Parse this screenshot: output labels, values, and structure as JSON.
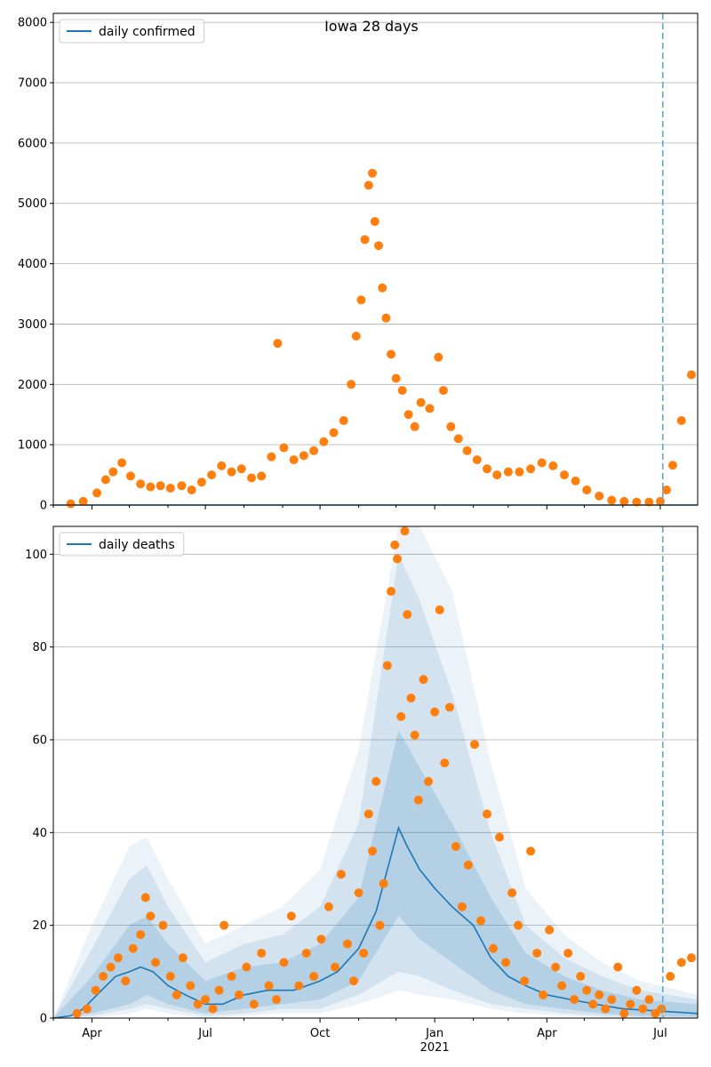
{
  "colors": {
    "model_line": "#1f77b4",
    "observed": "#ff7f0e",
    "grid": "#b0b0b0",
    "band": "#1f77b4",
    "forecast_marker": "#5ea5d8"
  },
  "chart_data": [
    {
      "type": "scatter",
      "title": "Iowa 28 days",
      "legend": [
        "daily confirmed"
      ],
      "legend_position": "top-left",
      "grid": "horizontal",
      "xlim": [
        "2020-03-01",
        "2021-07-31"
      ],
      "ylim": [
        0,
        8150
      ],
      "yticks": [
        0,
        1000,
        2000,
        3000,
        4000,
        5000,
        6000,
        7000,
        8000
      ],
      "forecast_start": "2021-07-03",
      "observed": [
        [
          "2020-03-15",
          20
        ],
        [
          "2020-03-25",
          60
        ],
        [
          "2020-04-05",
          200
        ],
        [
          "2020-04-12",
          420
        ],
        [
          "2020-04-18",
          550
        ],
        [
          "2020-04-25",
          700
        ],
        [
          "2020-05-02",
          480
        ],
        [
          "2020-05-10",
          350
        ],
        [
          "2020-05-18",
          300
        ],
        [
          "2020-05-26",
          320
        ],
        [
          "2020-06-03",
          280
        ],
        [
          "2020-06-12",
          320
        ],
        [
          "2020-06-20",
          250
        ],
        [
          "2020-06-28",
          380
        ],
        [
          "2020-07-06",
          500
        ],
        [
          "2020-07-14",
          650
        ],
        [
          "2020-07-22",
          550
        ],
        [
          "2020-07-30",
          600
        ],
        [
          "2020-08-07",
          450
        ],
        [
          "2020-08-15",
          480
        ],
        [
          "2020-08-23",
          800
        ],
        [
          "2020-08-28",
          2680
        ],
        [
          "2020-09-02",
          950
        ],
        [
          "2020-09-10",
          750
        ],
        [
          "2020-09-18",
          820
        ],
        [
          "2020-09-26",
          900
        ],
        [
          "2020-10-04",
          1050
        ],
        [
          "2020-10-12",
          1200
        ],
        [
          "2020-10-20",
          1400
        ],
        [
          "2020-10-26",
          2000
        ],
        [
          "2020-10-30",
          2800
        ],
        [
          "2020-11-03",
          3400
        ],
        [
          "2020-11-06",
          4400
        ],
        [
          "2020-11-09",
          5300
        ],
        [
          "2020-11-12",
          5500
        ],
        [
          "2020-11-14",
          4700
        ],
        [
          "2020-11-17",
          4300
        ],
        [
          "2020-11-20",
          3600
        ],
        [
          "2020-11-23",
          3100
        ],
        [
          "2020-11-27",
          2500
        ],
        [
          "2020-12-01",
          2100
        ],
        [
          "2020-12-06",
          1900
        ],
        [
          "2020-12-11",
          1500
        ],
        [
          "2020-12-16",
          1300
        ],
        [
          "2020-12-21",
          1700
        ],
        [
          "2020-12-28",
          1600
        ],
        [
          "2021-01-04",
          2450
        ],
        [
          "2021-01-08",
          1900
        ],
        [
          "2021-01-14",
          1300
        ],
        [
          "2021-01-20",
          1100
        ],
        [
          "2021-01-27",
          900
        ],
        [
          "2021-02-04",
          750
        ],
        [
          "2021-02-12",
          600
        ],
        [
          "2021-02-20",
          500
        ],
        [
          "2021-03-01",
          550
        ],
        [
          "2021-03-10",
          550
        ],
        [
          "2021-03-19",
          600
        ],
        [
          "2021-03-28",
          700
        ],
        [
          "2021-04-06",
          650
        ],
        [
          "2021-04-15",
          500
        ],
        [
          "2021-04-24",
          400
        ],
        [
          "2021-05-03",
          250
        ],
        [
          "2021-05-13",
          150
        ],
        [
          "2021-05-23",
          80
        ],
        [
          "2021-06-02",
          60
        ],
        [
          "2021-06-12",
          50
        ],
        [
          "2021-06-22",
          50
        ],
        [
          "2021-07-01",
          60
        ],
        [
          "2021-07-06",
          250
        ],
        [
          "2021-07-11",
          660
        ],
        [
          "2021-07-18",
          1400
        ],
        [
          "2021-07-26",
          2160
        ]
      ],
      "model": [
        [
          "2020-03-01",
          0
        ],
        [
          "2021-07-31",
          0
        ]
      ]
    },
    {
      "type": "line",
      "legend": [
        "daily deaths"
      ],
      "legend_position": "top-left",
      "grid": "horizontal",
      "xlim": [
        "2020-03-01",
        "2021-07-31"
      ],
      "ylim": [
        0,
        106
      ],
      "yticks": [
        0,
        20,
        40,
        60,
        80,
        100
      ],
      "xticks": [
        "Apr",
        "Jul",
        "Oct",
        "Jan",
        "Apr",
        "Jul"
      ],
      "xtick_year": "2021",
      "forecast_start": "2021-07-03",
      "model": [
        [
          "2020-03-01",
          0
        ],
        [
          "2020-03-15",
          0.5
        ],
        [
          "2020-03-25",
          2
        ],
        [
          "2020-04-05",
          5
        ],
        [
          "2020-04-20",
          9
        ],
        [
          "2020-05-01",
          10
        ],
        [
          "2020-05-10",
          11
        ],
        [
          "2020-05-20",
          10
        ],
        [
          "2020-06-01",
          7
        ],
        [
          "2020-06-15",
          5
        ],
        [
          "2020-07-01",
          3
        ],
        [
          "2020-07-15",
          3
        ],
        [
          "2020-08-01",
          5
        ],
        [
          "2020-08-20",
          6
        ],
        [
          "2020-09-10",
          6
        ],
        [
          "2020-10-01",
          8
        ],
        [
          "2020-10-15",
          10
        ],
        [
          "2020-11-01",
          15
        ],
        [
          "2020-11-15",
          23
        ],
        [
          "2020-11-25",
          33
        ],
        [
          "2020-12-03",
          41
        ],
        [
          "2020-12-10",
          37
        ],
        [
          "2020-12-20",
          32
        ],
        [
          "2021-01-01",
          28
        ],
        [
          "2021-01-15",
          24
        ],
        [
          "2021-02-01",
          20
        ],
        [
          "2021-02-15",
          13
        ],
        [
          "2021-03-01",
          9
        ],
        [
          "2021-03-15",
          7
        ],
        [
          "2021-04-01",
          5
        ],
        [
          "2021-04-20",
          4
        ],
        [
          "2021-05-10",
          3
        ],
        [
          "2021-06-01",
          2
        ],
        [
          "2021-07-01",
          1.5
        ],
        [
          "2021-07-31",
          1
        ]
      ],
      "bands": [
        [
          [
            "2020-03-01",
            0,
            0
          ],
          [
            "2020-04-01",
            1,
            9
          ],
          [
            "2020-05-01",
            3,
            20
          ],
          [
            "2020-05-15",
            5,
            22
          ],
          [
            "2020-06-01",
            3,
            16
          ],
          [
            "2020-07-01",
            1,
            8
          ],
          [
            "2020-08-01",
            2,
            11
          ],
          [
            "2020-09-01",
            3,
            12
          ],
          [
            "2020-10-01",
            4,
            16
          ],
          [
            "2020-11-01",
            8,
            26
          ],
          [
            "2020-12-03",
            22,
            62
          ],
          [
            "2020-12-20",
            17,
            54
          ],
          [
            "2021-01-15",
            12,
            42
          ],
          [
            "2021-02-15",
            6,
            26
          ],
          [
            "2021-03-15",
            3,
            14
          ],
          [
            "2021-04-15",
            2,
            9
          ],
          [
            "2021-05-15",
            1,
            6
          ],
          [
            "2021-06-15",
            0.5,
            4
          ],
          [
            "2021-07-31",
            0.3,
            3
          ]
        ],
        [
          [
            "2020-03-01",
            0,
            0
          ],
          [
            "2020-04-01",
            0.5,
            15
          ],
          [
            "2020-05-01",
            2,
            30
          ],
          [
            "2020-05-15",
            3,
            33
          ],
          [
            "2020-06-01",
            2,
            24
          ],
          [
            "2020-07-01",
            0.5,
            12
          ],
          [
            "2020-08-01",
            1,
            16
          ],
          [
            "2020-09-01",
            2,
            18
          ],
          [
            "2020-10-01",
            2,
            24
          ],
          [
            "2020-11-01",
            5,
            42
          ],
          [
            "2020-12-03",
            10,
            100
          ],
          [
            "2020-12-20",
            9,
            90
          ],
          [
            "2021-01-15",
            6,
            70
          ],
          [
            "2021-02-15",
            3,
            40
          ],
          [
            "2021-03-15",
            2,
            20
          ],
          [
            "2021-04-15",
            1,
            13
          ],
          [
            "2021-05-15",
            0.5,
            9
          ],
          [
            "2021-06-15",
            0.2,
            6
          ],
          [
            "2021-07-31",
            0.1,
            4
          ]
        ],
        [
          [
            "2020-03-01",
            0,
            0
          ],
          [
            "2020-04-01",
            0,
            20
          ],
          [
            "2020-05-01",
            1,
            37
          ],
          [
            "2020-05-15",
            2,
            39
          ],
          [
            "2020-06-01",
            1,
            30
          ],
          [
            "2020-07-01",
            0,
            16
          ],
          [
            "2020-08-01",
            0.5,
            20
          ],
          [
            "2020-09-01",
            1,
            24
          ],
          [
            "2020-10-01",
            1,
            32
          ],
          [
            "2020-11-01",
            3,
            58
          ],
          [
            "2020-12-03",
            6,
            106
          ],
          [
            "2020-12-20",
            5,
            106
          ],
          [
            "2021-01-15",
            4,
            92
          ],
          [
            "2021-02-15",
            2,
            55
          ],
          [
            "2021-03-15",
            1,
            28
          ],
          [
            "2021-04-15",
            0.5,
            18
          ],
          [
            "2021-05-15",
            0.2,
            12
          ],
          [
            "2021-06-15",
            0.1,
            8
          ],
          [
            "2021-07-31",
            0,
            5
          ]
        ]
      ],
      "observed": [
        [
          "2020-03-20",
          1
        ],
        [
          "2020-03-28",
          2
        ],
        [
          "2020-04-04",
          6
        ],
        [
          "2020-04-10",
          9
        ],
        [
          "2020-04-16",
          11
        ],
        [
          "2020-04-22",
          13
        ],
        [
          "2020-04-28",
          8
        ],
        [
          "2020-05-04",
          15
        ],
        [
          "2020-05-10",
          18
        ],
        [
          "2020-05-14",
          26
        ],
        [
          "2020-05-18",
          22
        ],
        [
          "2020-05-22",
          12
        ],
        [
          "2020-05-28",
          20
        ],
        [
          "2020-06-03",
          9
        ],
        [
          "2020-06-08",
          5
        ],
        [
          "2020-06-13",
          13
        ],
        [
          "2020-06-19",
          7
        ],
        [
          "2020-06-25",
          3
        ],
        [
          "2020-07-01",
          4
        ],
        [
          "2020-07-07",
          2
        ],
        [
          "2020-07-12",
          6
        ],
        [
          "2020-07-16",
          20
        ],
        [
          "2020-07-22",
          9
        ],
        [
          "2020-07-28",
          5
        ],
        [
          "2020-08-03",
          11
        ],
        [
          "2020-08-09",
          3
        ],
        [
          "2020-08-15",
          14
        ],
        [
          "2020-08-21",
          7
        ],
        [
          "2020-08-27",
          4
        ],
        [
          "2020-09-02",
          12
        ],
        [
          "2020-09-08",
          22
        ],
        [
          "2020-09-14",
          7
        ],
        [
          "2020-09-20",
          14
        ],
        [
          "2020-09-26",
          9
        ],
        [
          "2020-10-02",
          17
        ],
        [
          "2020-10-08",
          24
        ],
        [
          "2020-10-13",
          11
        ],
        [
          "2020-10-18",
          31
        ],
        [
          "2020-10-23",
          16
        ],
        [
          "2020-10-28",
          8
        ],
        [
          "2020-11-01",
          27
        ],
        [
          "2020-11-05",
          14
        ],
        [
          "2020-11-09",
          44
        ],
        [
          "2020-11-12",
          36
        ],
        [
          "2020-11-15",
          51
        ],
        [
          "2020-11-18",
          20
        ],
        [
          "2020-11-21",
          29
        ],
        [
          "2020-11-24",
          76
        ],
        [
          "2020-11-27",
          92
        ],
        [
          "2020-11-30",
          102
        ],
        [
          "2020-12-02",
          99
        ],
        [
          "2020-12-05",
          65
        ],
        [
          "2020-12-08",
          105
        ],
        [
          "2020-12-10",
          87
        ],
        [
          "2020-12-13",
          69
        ],
        [
          "2020-12-16",
          61
        ],
        [
          "2020-12-19",
          47
        ],
        [
          "2020-12-23",
          73
        ],
        [
          "2020-12-27",
          51
        ],
        [
          "2021-01-01",
          66
        ],
        [
          "2021-01-05",
          88
        ],
        [
          "2021-01-09",
          55
        ],
        [
          "2021-01-13",
          67
        ],
        [
          "2021-01-18",
          37
        ],
        [
          "2021-01-23",
          24
        ],
        [
          "2021-01-28",
          33
        ],
        [
          "2021-02-02",
          59
        ],
        [
          "2021-02-07",
          21
        ],
        [
          "2021-02-12",
          44
        ],
        [
          "2021-02-17",
          15
        ],
        [
          "2021-02-22",
          39
        ],
        [
          "2021-02-27",
          12
        ],
        [
          "2021-03-04",
          27
        ],
        [
          "2021-03-09",
          20
        ],
        [
          "2021-03-14",
          8
        ],
        [
          "2021-03-19",
          36
        ],
        [
          "2021-03-24",
          14
        ],
        [
          "2021-03-29",
          5
        ],
        [
          "2021-04-03",
          19
        ],
        [
          "2021-04-08",
          11
        ],
        [
          "2021-04-13",
          7
        ],
        [
          "2021-04-18",
          14
        ],
        [
          "2021-04-23",
          4
        ],
        [
          "2021-04-28",
          9
        ],
        [
          "2021-05-03",
          6
        ],
        [
          "2021-05-08",
          3
        ],
        [
          "2021-05-13",
          5
        ],
        [
          "2021-05-18",
          2
        ],
        [
          "2021-05-23",
          4
        ],
        [
          "2021-05-28",
          11
        ],
        [
          "2021-06-02",
          1
        ],
        [
          "2021-06-07",
          3
        ],
        [
          "2021-06-12",
          6
        ],
        [
          "2021-06-17",
          2
        ],
        [
          "2021-06-22",
          4
        ],
        [
          "2021-06-27",
          1
        ],
        [
          "2021-07-02",
          2
        ],
        [
          "2021-07-09",
          9
        ],
        [
          "2021-07-18",
          12
        ],
        [
          "2021-07-26",
          13
        ]
      ]
    }
  ]
}
